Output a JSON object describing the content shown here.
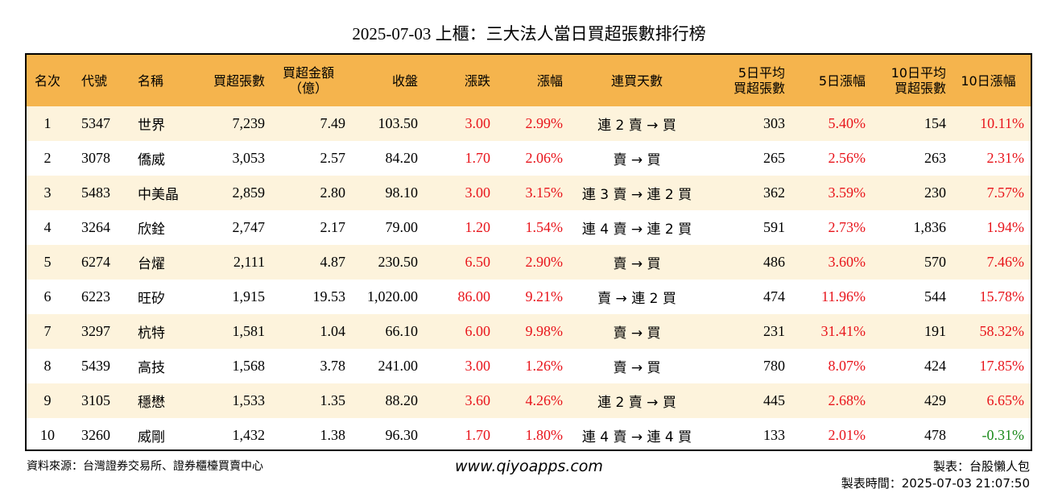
{
  "title": "2025-07-03 上櫃：三大法人當日買超張數排行榜",
  "columns": [
    "名次",
    "代號",
    "名稱",
    "買超張數",
    "買超金額\n（億）",
    "收盤",
    "漲跌",
    "漲幅",
    "連買天數",
    "5日平均\n買超張數",
    "5日漲幅",
    "10日平均\n買超張數",
    "10日漲幅"
  ],
  "colors": {
    "header_bg": "#f5b44d",
    "stripe_bg": "#fdf3dc",
    "up": "#e8141b",
    "down": "#1a8a1a"
  },
  "chart_data": {
    "type": "table",
    "rows": [
      {
        "rank": "1",
        "code": "5347",
        "name": "世界",
        "net_buy": "7,239",
        "amount": "7.49",
        "close": "103.50",
        "change": "3.00",
        "pct": "2.99%",
        "streak": "連 2 賣 → 買",
        "avg5": "303",
        "pct5": "5.40%",
        "avg10": "154",
        "pct10": "10.11%"
      },
      {
        "rank": "2",
        "code": "3078",
        "name": "僑威",
        "net_buy": "3,053",
        "amount": "2.57",
        "close": "84.20",
        "change": "1.70",
        "pct": "2.06%",
        "streak": "賣 → 買",
        "avg5": "265",
        "pct5": "2.56%",
        "avg10": "263",
        "pct10": "2.31%"
      },
      {
        "rank": "3",
        "code": "5483",
        "name": "中美晶",
        "net_buy": "2,859",
        "amount": "2.80",
        "close": "98.10",
        "change": "3.00",
        "pct": "3.15%",
        "streak": "連 3 賣 → 連 2 買",
        "avg5": "362",
        "pct5": "3.59%",
        "avg10": "230",
        "pct10": "7.57%"
      },
      {
        "rank": "4",
        "code": "3264",
        "name": "欣銓",
        "net_buy": "2,747",
        "amount": "2.17",
        "close": "79.00",
        "change": "1.20",
        "pct": "1.54%",
        "streak": "連 4 賣 → 連 2 買",
        "avg5": "591",
        "pct5": "2.73%",
        "avg10": "1,836",
        "pct10": "1.94%"
      },
      {
        "rank": "5",
        "code": "6274",
        "name": "台燿",
        "net_buy": "2,111",
        "amount": "4.87",
        "close": "230.50",
        "change": "6.50",
        "pct": "2.90%",
        "streak": "賣 → 買",
        "avg5": "486",
        "pct5": "3.60%",
        "avg10": "570",
        "pct10": "7.46%"
      },
      {
        "rank": "6",
        "code": "6223",
        "name": "旺矽",
        "net_buy": "1,915",
        "amount": "19.53",
        "close": "1,020.00",
        "change": "86.00",
        "pct": "9.21%",
        "streak": "賣 → 連 2 買",
        "avg5": "474",
        "pct5": "11.96%",
        "avg10": "544",
        "pct10": "15.78%"
      },
      {
        "rank": "7",
        "code": "3297",
        "name": "杭特",
        "net_buy": "1,581",
        "amount": "1.04",
        "close": "66.10",
        "change": "6.00",
        "pct": "9.98%",
        "streak": "賣 → 買",
        "avg5": "231",
        "pct5": "31.41%",
        "avg10": "191",
        "pct10": "58.32%"
      },
      {
        "rank": "8",
        "code": "5439",
        "name": "高技",
        "net_buy": "1,568",
        "amount": "3.78",
        "close": "241.00",
        "change": "3.00",
        "pct": "1.26%",
        "streak": "賣 → 買",
        "avg5": "780",
        "pct5": "8.07%",
        "avg10": "424",
        "pct10": "17.85%"
      },
      {
        "rank": "9",
        "code": "3105",
        "name": "穩懋",
        "net_buy": "1,533",
        "amount": "1.35",
        "close": "88.20",
        "change": "3.60",
        "pct": "4.26%",
        "streak": "連 2 賣 → 買",
        "avg5": "445",
        "pct5": "2.68%",
        "avg10": "429",
        "pct10": "6.65%"
      },
      {
        "rank": "10",
        "code": "3260",
        "name": "威剛",
        "net_buy": "1,432",
        "amount": "1.38",
        "close": "96.30",
        "change": "1.70",
        "pct": "1.80%",
        "streak": "連 4 賣 → 連 4 買",
        "avg5": "133",
        "pct5": "2.01%",
        "avg10": "478",
        "pct10": "-0.31%"
      }
    ]
  },
  "footer": {
    "source": "資料來源：台灣證券交易所、證券櫃檯買賣中心",
    "website": "www.qiyoapps.com",
    "maker": "製表：台股懶人包",
    "made_time": "製表時間：2025-07-03 21:07:50"
  }
}
